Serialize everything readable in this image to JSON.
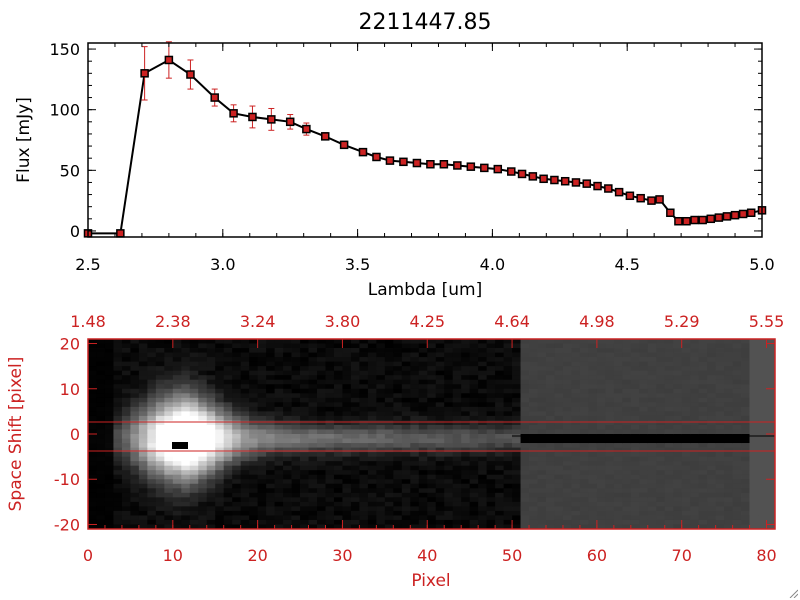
{
  "chart_data": [
    {
      "type": "line",
      "title": "2211447.85",
      "xlabel": "Lambda [um]",
      "ylabel": "Flux [mJy]",
      "xlim": [
        2.5,
        5.0
      ],
      "ylim": [
        -5,
        155
      ],
      "x_ticks": [
        "2.5",
        "3.0",
        "3.5",
        "4.0",
        "4.5",
        "5.0"
      ],
      "y_ticks": [
        "0",
        "50",
        "100",
        "150"
      ],
      "line_color": "#000000",
      "marker_color": "#cc2222",
      "errorbar_color": "#cc2222",
      "series": [
        {
          "x": [
            2.5,
            2.62,
            2.71,
            2.8,
            2.88,
            2.97,
            3.04,
            3.11,
            3.18,
            3.25,
            3.31,
            3.38,
            3.45,
            3.52,
            3.57,
            3.62,
            3.67,
            3.72,
            3.77,
            3.82,
            3.87,
            3.92,
            3.97,
            4.02,
            4.07,
            4.11,
            4.15,
            4.19,
            4.23,
            4.27,
            4.31,
            4.35,
            4.39,
            4.43,
            4.47,
            4.51,
            4.55,
            4.59,
            4.62,
            4.66,
            4.69,
            4.72,
            4.75,
            4.78,
            4.81,
            4.84,
            4.87,
            4.9,
            4.93,
            4.96,
            5.0
          ],
          "y": [
            -2,
            -2,
            130,
            141,
            129,
            110,
            97,
            94,
            92,
            90,
            84,
            78,
            71,
            65,
            61,
            58,
            57,
            56,
            55,
            55,
            54,
            53,
            52,
            51,
            49,
            47,
            45,
            43,
            42,
            41,
            40,
            39,
            37,
            35,
            32,
            29,
            27,
            25,
            26,
            15,
            8,
            8,
            9,
            9,
            10,
            11,
            12,
            13,
            14,
            15,
            17
          ],
          "yerr": [
            0,
            0,
            22,
            15,
            12,
            7,
            7,
            9,
            9,
            6,
            5,
            3,
            3,
            2,
            2,
            2,
            2,
            2,
            2,
            2,
            2,
            2,
            2,
            2,
            2,
            2,
            2,
            2,
            2,
            2,
            2,
            2,
            2,
            2,
            2,
            2,
            2,
            2,
            2,
            2,
            2,
            2,
            2,
            2,
            2,
            2,
            2,
            2,
            2,
            2,
            2
          ]
        }
      ]
    },
    {
      "type": "heatmap",
      "xlabel": "Pixel",
      "ylabel": "Space Shift [pixel]",
      "xlim": [
        0,
        81
      ],
      "ylim": [
        -21,
        21
      ],
      "x_ticks": [
        "0",
        "10",
        "20",
        "30",
        "40",
        "50",
        "60",
        "70",
        "80"
      ],
      "y_ticks": [
        "-20",
        "-10",
        "0",
        "10",
        "20"
      ],
      "top_ticks": [
        "1.48",
        "2.38",
        "3.24",
        "3.80",
        "4.25",
        "4.64",
        "4.98",
        "5.29",
        "5.55"
      ],
      "axis_color": "#cc2222",
      "colormap": "grayscale",
      "trace_center": -1,
      "trace_peak_pixel": 10,
      "extraction_aperture": [
        -3,
        3
      ],
      "masked_region_start": 51,
      "masked_region_level": 0.25
    }
  ]
}
